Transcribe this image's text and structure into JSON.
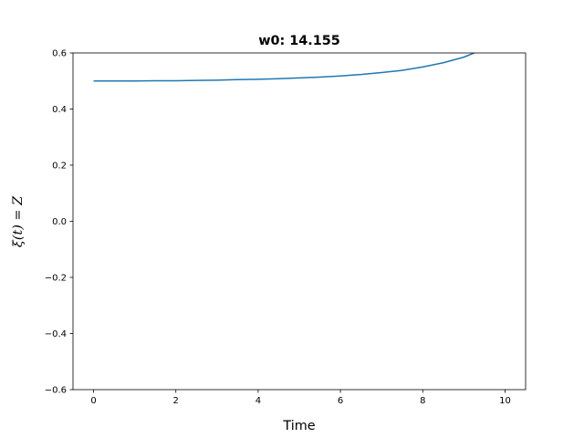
{
  "chart_data": {
    "type": "line",
    "title": "w0: 14.155",
    "xlabel": "Time",
    "ylabel": "ξ(t) = Z",
    "xlim": [
      -0.5,
      10.5
    ],
    "ylim": [
      -0.6,
      0.6
    ],
    "xticks": [
      0,
      2,
      4,
      6,
      8,
      10
    ],
    "xtick_labels": [
      "0",
      "2",
      "4",
      "6",
      "8",
      "10"
    ],
    "yticks": [
      -0.6,
      -0.4,
      -0.2,
      0.0,
      0.2,
      0.4,
      0.6
    ],
    "ytick_labels": [
      "−0.6",
      "−0.4",
      "−0.2",
      "0.0",
      "0.2",
      "0.4",
      "0.6"
    ],
    "grid": false,
    "series": [
      {
        "color": "#1f77b4",
        "x": [
          0,
          0.5,
          1,
          1.5,
          2,
          2.5,
          3,
          3.5,
          4,
          4.5,
          5,
          5.5,
          6,
          6.5,
          7,
          7.5,
          8,
          8.5,
          9,
          9.25
        ],
        "y": [
          0.5,
          0.5,
          0.5,
          0.501,
          0.501,
          0.502,
          0.503,
          0.505,
          0.506,
          0.508,
          0.511,
          0.514,
          0.518,
          0.523,
          0.53,
          0.538,
          0.55,
          0.565,
          0.585,
          0.6
        ]
      }
    ]
  }
}
